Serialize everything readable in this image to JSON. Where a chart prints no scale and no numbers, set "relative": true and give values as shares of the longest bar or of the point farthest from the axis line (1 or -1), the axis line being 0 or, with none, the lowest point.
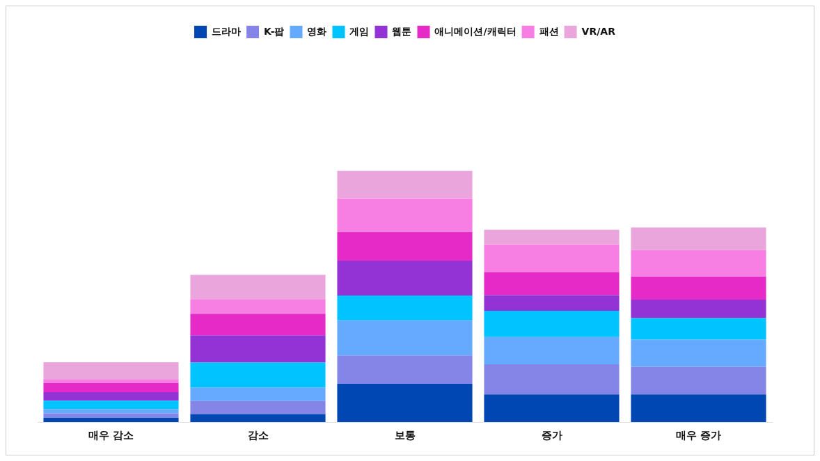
{
  "chart_data": {
    "type": "bar",
    "stacked": true,
    "relative": true,
    "legend": "top",
    "categories": [
      "매우 감소",
      "감소",
      "보통",
      "증가",
      "매우 증가"
    ],
    "series": [
      {
        "name": "드라마",
        "color": "#0047b3",
        "values": [
          0.017,
          0.032,
          0.153,
          0.11,
          0.11
        ]
      },
      {
        "name": "K-팝",
        "color": "#8585e8",
        "values": [
          0.017,
          0.052,
          0.112,
          0.12,
          0.11
        ]
      },
      {
        "name": "영화",
        "color": "#66aaff",
        "values": [
          0.017,
          0.054,
          0.14,
          0.108,
          0.108
        ]
      },
      {
        "name": "게임",
        "color": "#00c3ff",
        "values": [
          0.034,
          0.099,
          0.099,
          0.105,
          0.086
        ]
      },
      {
        "name": "웹툰",
        "color": "#9333d6",
        "values": [
          0.034,
          0.108,
          0.138,
          0.062,
          0.073
        ]
      },
      {
        "name": "애니메이션/캐릭터",
        "color": "#e52ac7",
        "values": [
          0.037,
          0.086,
          0.114,
          0.092,
          0.092
        ]
      },
      {
        "name": "패션",
        "color": "#f77ee2",
        "values": [
          0.015,
          0.058,
          0.133,
          0.11,
          0.105
        ]
      },
      {
        "name": "VR/AR",
        "color": "#eaa6dc",
        "values": [
          0.067,
          0.097,
          0.111,
          0.058,
          0.09
        ]
      }
    ]
  }
}
